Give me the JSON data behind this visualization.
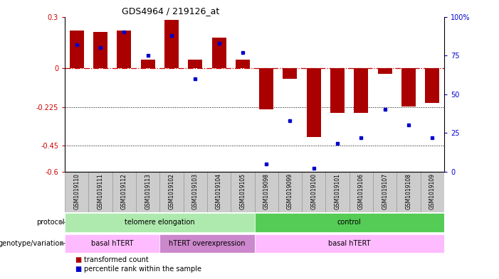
{
  "title": "GDS4964 / 219126_at",
  "samples": [
    "GSM1019110",
    "GSM1019111",
    "GSM1019112",
    "GSM1019113",
    "GSM1019102",
    "GSM1019103",
    "GSM1019104",
    "GSM1019105",
    "GSM1019098",
    "GSM1019099",
    "GSM1019100",
    "GSM1019101",
    "GSM1019106",
    "GSM1019107",
    "GSM1019108",
    "GSM1019109"
  ],
  "red_values": [
    0.22,
    0.21,
    0.22,
    0.05,
    0.28,
    0.05,
    0.18,
    0.05,
    -0.24,
    -0.06,
    -0.4,
    -0.26,
    -0.26,
    -0.03,
    -0.22,
    -0.2
  ],
  "blue_values_pct": [
    82,
    80,
    90,
    75,
    88,
    60,
    83,
    77,
    5,
    33,
    2,
    18,
    22,
    40,
    30,
    22
  ],
  "ylim_left": [
    -0.6,
    0.3
  ],
  "ylim_right": [
    0,
    100
  ],
  "yticks_left": [
    0.3,
    0.0,
    -0.225,
    -0.45,
    -0.6
  ],
  "ytick_labels_left": [
    "0.3",
    "0",
    "-0.225",
    "-0.45",
    "-0.6"
  ],
  "yticks_right": [
    100,
    75,
    50,
    25,
    0
  ],
  "ytick_labels_right": [
    "100%",
    "75",
    "50",
    "25",
    "0"
  ],
  "hline_dotted": [
    -0.225,
    -0.45
  ],
  "protocol_labels": [
    {
      "text": "telomere elongation",
      "start": 0,
      "end": 7,
      "color": "#AEEAAE"
    },
    {
      "text": "control",
      "start": 8,
      "end": 15,
      "color": "#55CC55"
    }
  ],
  "genotype_labels": [
    {
      "text": "basal hTERT",
      "start": 0,
      "end": 3,
      "color": "#FFBBFF"
    },
    {
      "text": "hTERT overexpression",
      "start": 4,
      "end": 7,
      "color": "#CC88CC"
    },
    {
      "text": "basal hTERT",
      "start": 8,
      "end": 15,
      "color": "#FFBBFF"
    }
  ],
  "bar_color": "#AA0000",
  "dot_color": "#0000CC",
  "dashed_line_color": "#CC0000",
  "bg_color": "#FFFFFF",
  "axis_label_color_left": "#CC0000",
  "axis_label_color_right": "#0000CC",
  "sample_box_color": "#CCCCCC",
  "sample_box_border": "#999999"
}
